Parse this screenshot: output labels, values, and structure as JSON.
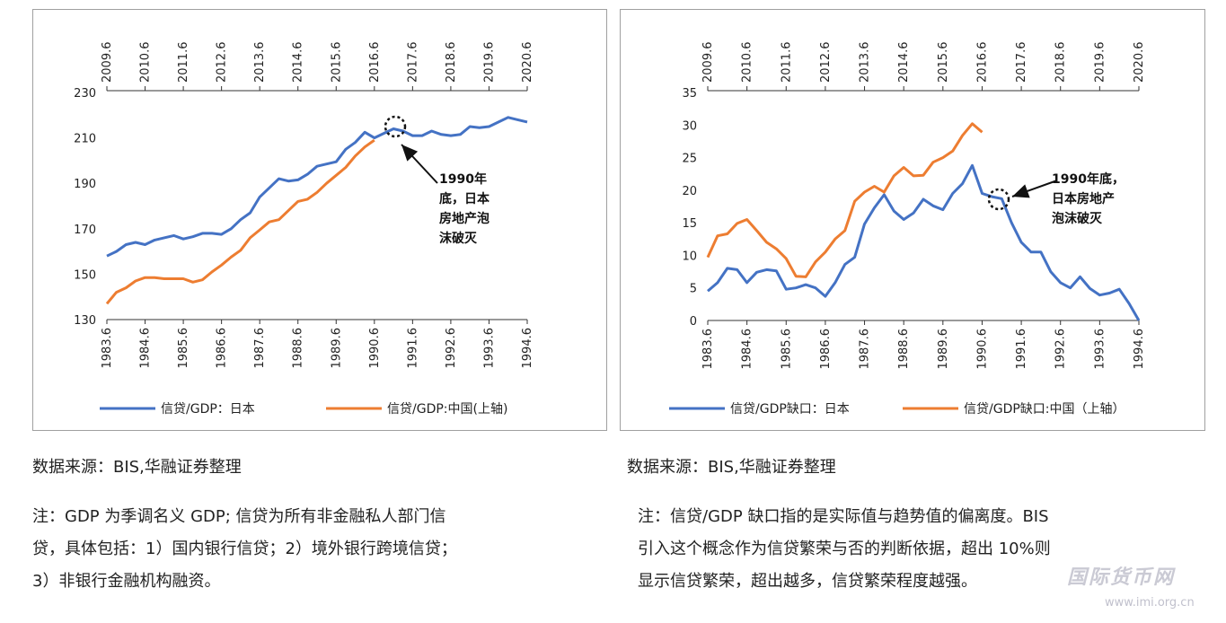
{
  "colors": {
    "japan": "#4472C4",
    "china": "#ED7D31",
    "frame": "#a0a0a0"
  },
  "chart_data": [
    {
      "type": "line",
      "title": "",
      "x_bottom": [
        "1983.6",
        "1984.6",
        "1985.6",
        "1986.6",
        "1987.6",
        "1988.6",
        "1989.6",
        "1990.6",
        "1991.6",
        "1992.6",
        "1993.6",
        "1994.6"
      ],
      "x_top": [
        "2009.6",
        "2010.6",
        "2011.6",
        "2012.6",
        "2013.6",
        "2014.6",
        "2015.6",
        "2016.6",
        "2017.6",
        "2018.6",
        "2019.6",
        "2020.6"
      ],
      "y_ticks": [
        "230",
        "210",
        "190",
        "170",
        "150",
        "130"
      ],
      "ylim": [
        130,
        230
      ],
      "grid": false,
      "legend_position": "bottom",
      "annotation": [
        "1990年",
        "底，日本",
        "房地产泡",
        "沫破灭"
      ],
      "series": [
        {
          "name": "信贷/GDP：日本",
          "axis": "bottom",
          "values": [
            158,
            160,
            163,
            164,
            163,
            165,
            166,
            167,
            165.5,
            166.5,
            168,
            168,
            167.5,
            170,
            174,
            177,
            184,
            188,
            192,
            191,
            191.5,
            194,
            197.5,
            198.5,
            199.5,
            205,
            208,
            212.5,
            210,
            212,
            214,
            213,
            211,
            211,
            213,
            211.5,
            211,
            211.5,
            215,
            214.5,
            215,
            217,
            219,
            218,
            217
          ]
        },
        {
          "name": "信贷/GDP:中国(上轴)",
          "axis": "top",
          "values": [
            137,
            142,
            144,
            147,
            148.5,
            148.5,
            148,
            148,
            148,
            146.5,
            147.5,
            151,
            154,
            157.5,
            160.5,
            166,
            169.5,
            173,
            174,
            178,
            182,
            183,
            186,
            190,
            193.5,
            197,
            202,
            206,
            209
          ]
        }
      ]
    },
    {
      "type": "line",
      "title": "",
      "x_bottom": [
        "1983.6",
        "1984.6",
        "1985.6",
        "1986.6",
        "1987.6",
        "1988.6",
        "1989.6",
        "1990.6",
        "1991.6",
        "1992.6",
        "1993.6",
        "1994.6"
      ],
      "x_top": [
        "2009.6",
        "2010.6",
        "2011.6",
        "2012.6",
        "2013.6",
        "2014.6",
        "2015.6",
        "2016.6",
        "2017.6",
        "2018.6",
        "2019.6",
        "2020.6"
      ],
      "y_ticks": [
        "35",
        "30",
        "25",
        "20",
        "15",
        "10",
        "5",
        "0"
      ],
      "ylim": [
        0,
        35
      ],
      "grid": false,
      "legend_position": "bottom",
      "annotation": [
        "1990年底，",
        "日本房地产",
        "泡沫破灭"
      ],
      "series": [
        {
          "name": "信贷/GDP缺口：日本",
          "axis": "bottom",
          "values": [
            4.5,
            5.8,
            8,
            7.8,
            5.8,
            7.4,
            7.8,
            7.6,
            4.8,
            5,
            5.5,
            5,
            3.7,
            5.8,
            8.6,
            9.7,
            14.8,
            17.3,
            19.3,
            16.8,
            15.5,
            16.5,
            18.6,
            17.6,
            17,
            19.5,
            21,
            23.8,
            19.5,
            19,
            18.7,
            15,
            12,
            10.5,
            10.5,
            7.5,
            5.8,
            5,
            6.7,
            4.9,
            3.9,
            4.2,
            4.8,
            2.6,
            0
          ]
        },
        {
          "name": "信贷/GDP缺口:中国（上轴）",
          "axis": "top",
          "values": [
            9.7,
            13,
            13.3,
            14.9,
            15.5,
            13.8,
            12,
            11,
            9.5,
            6.8,
            6.7,
            9,
            10.5,
            12.5,
            13.8,
            18.3,
            19.7,
            20.6,
            19.7,
            22.2,
            23.5,
            22.2,
            22.3,
            24.3,
            25,
            26,
            28.4,
            30.2,
            28.9
          ]
        }
      ]
    }
  ],
  "left": {
    "source": "数据来源：BIS,华融证券整理",
    "note_lines": [
      "注：GDP 为季调名义 GDP; 信贷为所有非金融私人部门信",
      "贷，具体包括：1）国内银行信贷；2）境外银行跨境信贷；",
      "3）非银行金融机构融资。"
    ]
  },
  "right": {
    "source": "数据来源：BIS,华融证券整理",
    "note_lines": [
      "注：信贷/GDP 缺口指的是实际值与趋势值的偏离度。BIS",
      "引入这个概念作为信贷繁荣与否的判断依据，超出 10%则",
      "显示信贷繁荣，超出越多，信贷繁荣程度越强。"
    ]
  },
  "watermark": {
    "text": "国际货币网",
    "url": "www.imi.org.cn"
  }
}
